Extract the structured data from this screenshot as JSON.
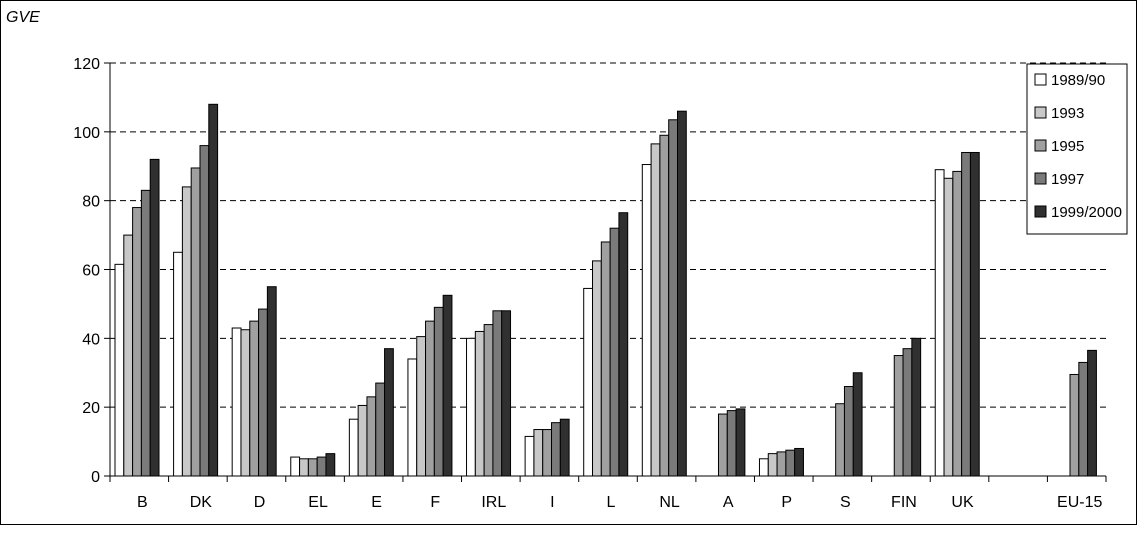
{
  "chart_data": {
    "type": "bar",
    "ylabel": "GVE",
    "ylim": [
      0,
      120
    ],
    "yticks": [
      0,
      20,
      40,
      60,
      80,
      100,
      120
    ],
    "grid": "horizontal-dashed",
    "legend_position": "top-right",
    "categories": [
      "B",
      "DK",
      "D",
      "EL",
      "E",
      "F",
      "IRL",
      "I",
      "L",
      "NL",
      "A",
      "P",
      "S",
      "FIN",
      "UK",
      "",
      "EU-15"
    ],
    "series": [
      {
        "name": "1989/90",
        "color": "#ffffff",
        "values": [
          61.5,
          65,
          43,
          5.5,
          16.5,
          34,
          40,
          11.5,
          54.5,
          90.5,
          null,
          5,
          null,
          null,
          89,
          null,
          null
        ]
      },
      {
        "name": "1993",
        "color": "#c8c8c8",
        "values": [
          70,
          84,
          42.5,
          5,
          20.5,
          40.5,
          42,
          13.5,
          62.5,
          96.5,
          null,
          6.5,
          null,
          null,
          86.5,
          null,
          null
        ]
      },
      {
        "name": "1995",
        "color": "#a0a0a0",
        "values": [
          78,
          89.5,
          45,
          5,
          23,
          45,
          44,
          13.5,
          68,
          99,
          18,
          7,
          21,
          35,
          88.5,
          null,
          29.5
        ]
      },
      {
        "name": "1997",
        "color": "#7a7a7a",
        "values": [
          83,
          96,
          48.5,
          5.5,
          27,
          49,
          48,
          15.5,
          72,
          103.5,
          19,
          7.5,
          26,
          37,
          94,
          null,
          33
        ]
      },
      {
        "name": "1999/2000",
        "color": "#303030",
        "values": [
          92,
          108,
          55,
          6.5,
          37,
          52.5,
          48,
          16.5,
          76.5,
          106,
          19.5,
          8,
          30,
          40,
          94,
          null,
          36.5
        ]
      }
    ]
  }
}
